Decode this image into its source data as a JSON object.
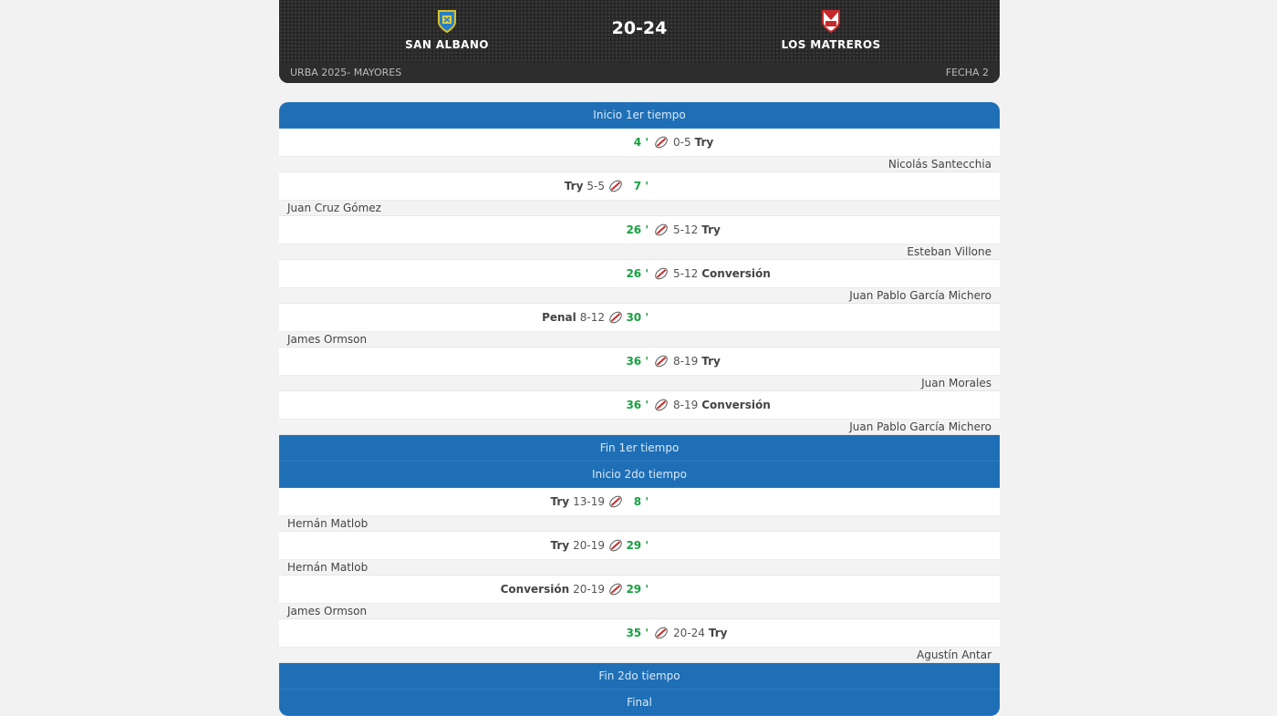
{
  "match": {
    "home_team": "San Albano",
    "away_team": "Los Matreros",
    "score": "20-24",
    "competition": "URBA 2025- MAYORES",
    "round": "FECHA 2"
  },
  "colors": {
    "accent_blue": "#1e6fb6",
    "minute_green": "#17a040",
    "header_dark": "#262626"
  },
  "timeline": [
    {
      "type": "sep",
      "label": "Inicio 1er tiempo"
    },
    {
      "type": "event",
      "side": "away",
      "minute": "4 '",
      "score": "0-5",
      "event": "Try",
      "player": "Nicolás Santecchia"
    },
    {
      "type": "event",
      "side": "home",
      "minute": "7 '",
      "score": "5-5",
      "event": "Try",
      "player": "Juan Cruz Gómez"
    },
    {
      "type": "event",
      "side": "away",
      "minute": "26 '",
      "score": "5-12",
      "event": "Try",
      "player": "Esteban Villone"
    },
    {
      "type": "event",
      "side": "away",
      "minute": "26 '",
      "score": "5-12",
      "event": "Conversión",
      "player": "Juan Pablo García Michero"
    },
    {
      "type": "event",
      "side": "home",
      "minute": "30 '",
      "score": "8-12",
      "event": "Penal",
      "player": "James Ormson"
    },
    {
      "type": "event",
      "side": "away",
      "minute": "36 '",
      "score": "8-19",
      "event": "Try",
      "player": "Juan Morales"
    },
    {
      "type": "event",
      "side": "away",
      "minute": "36 '",
      "score": "8-19",
      "event": "Conversión",
      "player": "Juan Pablo García Michero"
    },
    {
      "type": "sep",
      "label": "Fin 1er tiempo"
    },
    {
      "type": "sep",
      "label": "Inicio 2do tiempo"
    },
    {
      "type": "event",
      "side": "home",
      "minute": "8 '",
      "score": "13-19",
      "event": "Try",
      "player": "Hernán Matlob"
    },
    {
      "type": "event",
      "side": "home",
      "minute": "29 '",
      "score": "20-19",
      "event": "Try",
      "player": "Hernán Matlob"
    },
    {
      "type": "event",
      "side": "home",
      "minute": "29 '",
      "score": "20-19",
      "event": "Conversión",
      "player": "James Ormson"
    },
    {
      "type": "event",
      "side": "away",
      "minute": "35 '",
      "score": "20-24",
      "event": "Try",
      "player": "Agustín Antar"
    },
    {
      "type": "sep",
      "label": "Fin 2do tiempo"
    },
    {
      "type": "sep",
      "label": "Final"
    }
  ],
  "icons": {
    "event_icon": "rugby-ball-icon",
    "home_crest": "san-albano-crest-icon",
    "away_crest": "los-matreros-crest-icon"
  }
}
